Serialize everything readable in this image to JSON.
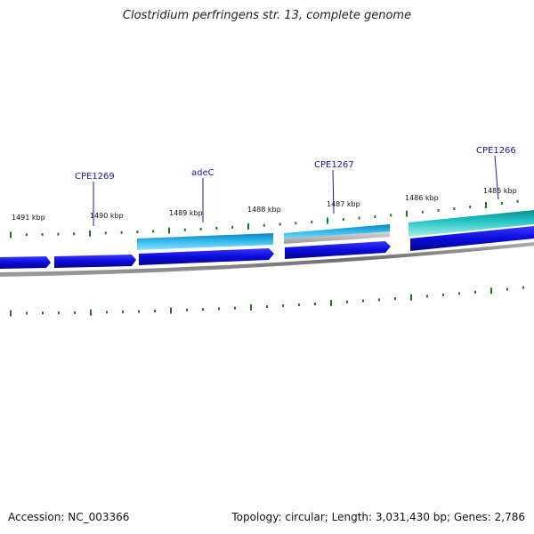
{
  "title": "Clostridium perfringens str. 13, complete genome",
  "footer": {
    "accession": "Accession: NC_003366",
    "summary": "Topology: circular; Length: 3,031,430 bp; Genes: 2,786"
  },
  "map": {
    "kbp_ticks": [
      "1491 kbp",
      "1490 kbp",
      "1489 kbp",
      "1488 kbp",
      "1487 kbp",
      "1486 kbp",
      "1485 kbp"
    ],
    "gene_labels": [
      "CPE1269",
      "adeC",
      "CPE1267",
      "CPE1266"
    ],
    "colors": {
      "cds_dark": "#0a0adc",
      "cds_light": "#2ab4e8",
      "cds_teal": "#20c4c4",
      "cds_gray": "#b8b8b8",
      "backbone": "#808080",
      "gc_tick": "#1f7a1f",
      "label": "#1a1aa8"
    }
  }
}
